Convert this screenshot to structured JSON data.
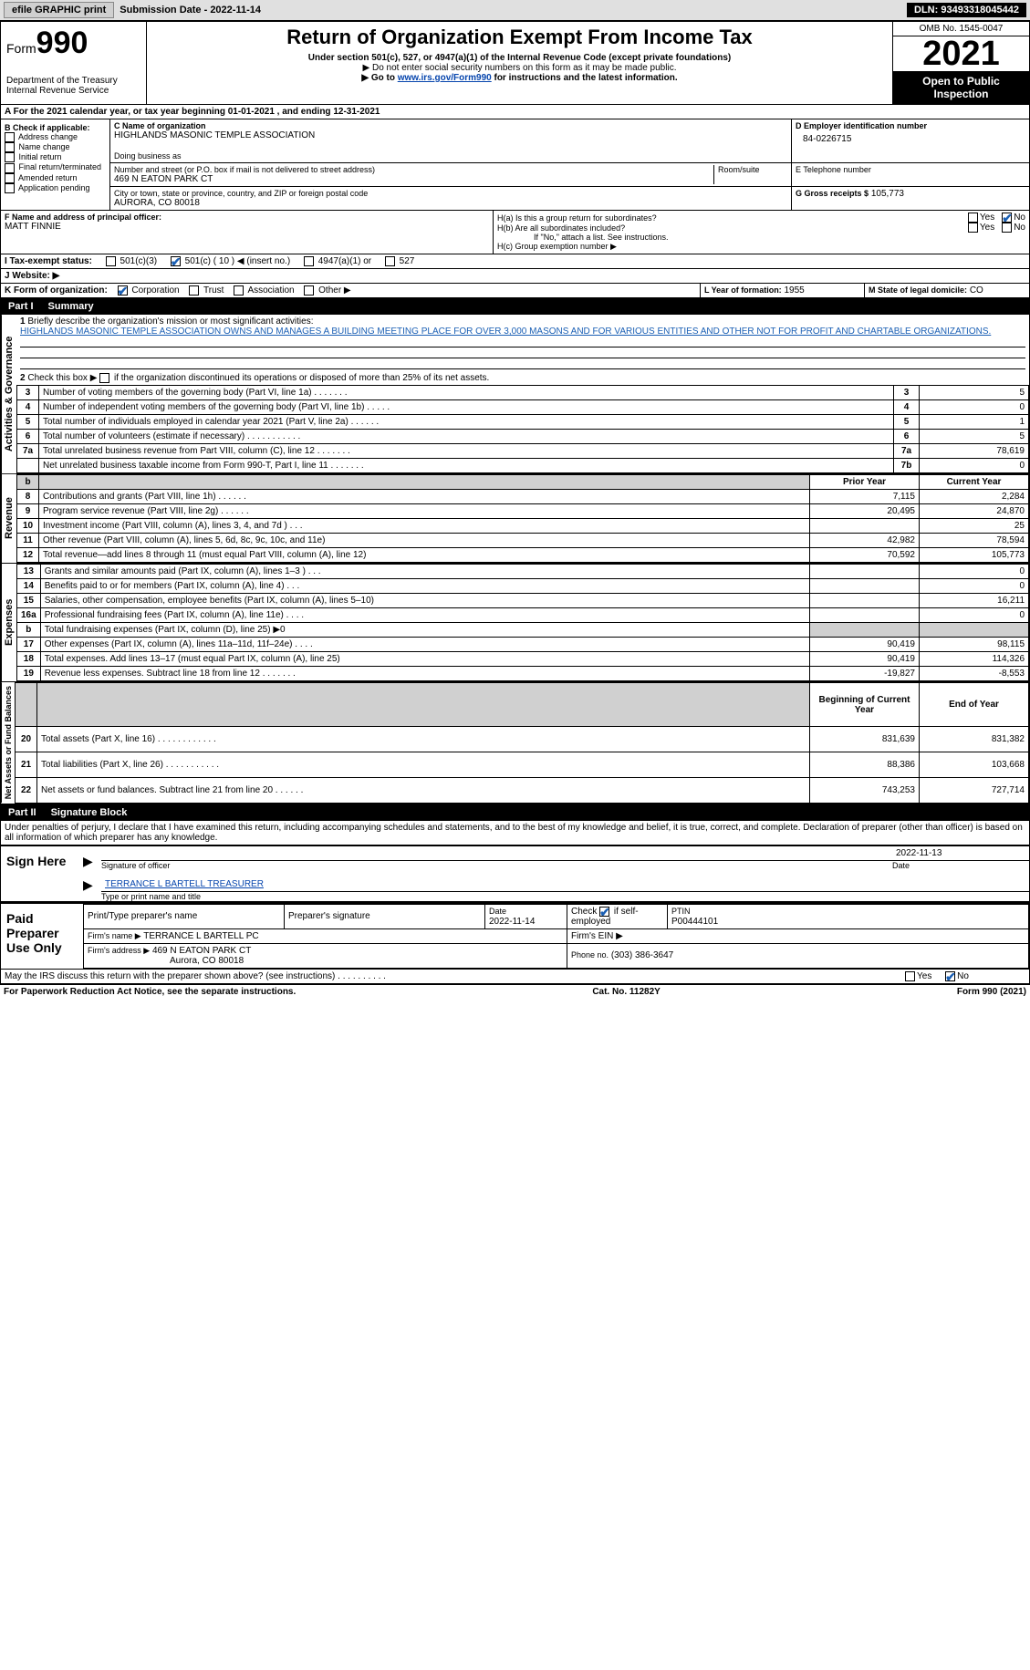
{
  "topbar": {
    "efile_btn": "efile GRAPHIC print",
    "submission_label": "Submission Date - 2022-11-14",
    "dln": "DLN: 93493318045442"
  },
  "header": {
    "form_prefix": "Form",
    "form_number": "990",
    "dept": "Department of the Treasury",
    "irs": "Internal Revenue Service",
    "title": "Return of Organization Exempt From Income Tax",
    "subtitle": "Under section 501(c), 527, or 4947(a)(1) of the Internal Revenue Code (except private foundations)",
    "note1": "▶ Do not enter social security numbers on this form as it may be made public.",
    "note2_pre": "▶ Go to ",
    "note2_link": "www.irs.gov/Form990",
    "note2_post": " for instructions and the latest information.",
    "omb": "OMB No. 1545-0047",
    "tax_year": "2021",
    "open_public": "Open to Public Inspection"
  },
  "period": {
    "line": "A For the 2021 calendar year, or tax year beginning 01-01-2021    , and ending 12-31-2021"
  },
  "section_b": {
    "label": "B Check if applicable:",
    "opts": [
      "Address change",
      "Name change",
      "Initial return",
      "Final return/terminated",
      "Amended return",
      "Application pending"
    ]
  },
  "section_c": {
    "name_label": "C Name of organization",
    "org_name": "HIGHLANDS MASONIC TEMPLE ASSOCIATION",
    "dba_label": "Doing business as",
    "street_label": "Number and street (or P.O. box if mail is not delivered to street address)",
    "room_label": "Room/suite",
    "street": "469 N EATON PARK CT",
    "city_label": "City or town, state or province, country, and ZIP or foreign postal code",
    "city": "AURORA, CO  80018"
  },
  "section_d": {
    "label": "D Employer identification number",
    "value": "84-0226715"
  },
  "section_e": {
    "label": "E Telephone number",
    "value": ""
  },
  "section_g": {
    "label": "G Gross receipts $",
    "value": "105,773"
  },
  "section_f": {
    "label": "F  Name and address of principal officer:",
    "name": "MATT FINNIE"
  },
  "section_h": {
    "ha_label": "H(a)  Is this a group return for subordinates?",
    "hb_label": "H(b)  Are all subordinates included?",
    "hb_note": "If \"No,\" attach a list. See instructions.",
    "hc_label": "H(c)  Group exemption number ▶",
    "yes": "Yes",
    "no": "No"
  },
  "section_i": {
    "label": "I   Tax-exempt status:",
    "opt1": "501(c)(3)",
    "opt2": "501(c) ( 10 ) ◀ (insert no.)",
    "opt3": "4947(a)(1) or",
    "opt4": "527"
  },
  "section_j": {
    "label": "J   Website: ▶"
  },
  "section_k": {
    "label": "K Form of organization:",
    "corp": "Corporation",
    "trust": "Trust",
    "assoc": "Association",
    "other": "Other ▶"
  },
  "section_l": {
    "label": "L Year of formation:",
    "value": "1955"
  },
  "section_m": {
    "label": "M State of legal domicile:",
    "value": "CO"
  },
  "part1": {
    "num": "Part I",
    "title": "Summary",
    "q1_label": "Briefly describe the organization's mission or most significant activities:",
    "q1_text": "HIGHLANDS MASONIC TEMPLE ASSOCIATION OWNS AND MANAGES A BUILDING MEETING PLACE FOR OVER 3,000 MASONS AND FOR VARIOUS ENTITIES AND OTHER NOT FOR PROFIT AND CHARTABLE ORGANIZATIONS.",
    "q2": "Check this box ▶      if the organization discontinued its operations or disposed of more than 25% of its net assets.",
    "lines_ag": [
      {
        "n": "3",
        "d": "Number of voting members of the governing body (Part VI, line 1a)   .    .    .    .    .    .    .",
        "b": "3",
        "v": "5"
      },
      {
        "n": "4",
        "d": "Number of independent voting members of the governing body (Part VI, line 1b)   .    .    .    .    .",
        "b": "4",
        "v": "0"
      },
      {
        "n": "5",
        "d": "Total number of individuals employed in calendar year 2021 (Part V, line 2a)   .    .    .    .    .    .",
        "b": "5",
        "v": "1"
      },
      {
        "n": "6",
        "d": "Total number of volunteers (estimate if necessary)    .    .    .    .    .    .    .    .    .    .    .",
        "b": "6",
        "v": "5"
      },
      {
        "n": "7a",
        "d": "Total unrelated business revenue from Part VIII, column (C), line 12   .    .    .    .    .    .    .",
        "b": "7a",
        "v": "78,619"
      },
      {
        "n": "",
        "d": "Net unrelated business taxable income from Form 990-T, Part I, line 11   .    .    .    .    .    .    .",
        "b": "7b",
        "v": "0"
      }
    ],
    "col_prior": "Prior Year",
    "col_current": "Current Year",
    "revenue_label": "Revenue",
    "expenses_label": "Expenses",
    "netassets_label": "Net Assets or Fund Balances",
    "ag_label": "Activities & Governance",
    "revenue": [
      {
        "n": "8",
        "d": "Contributions and grants (Part VIII, line 1h)   .    .    .    .    .    .",
        "p": "7,115",
        "c": "2,284"
      },
      {
        "n": "9",
        "d": "Program service revenue (Part VIII, line 2g)   .    .    .    .    .    .",
        "p": "20,495",
        "c": "24,870"
      },
      {
        "n": "10",
        "d": "Investment income (Part VIII, column (A), lines 3, 4, and 7d )   .    .    .",
        "p": "",
        "c": "25"
      },
      {
        "n": "11",
        "d": "Other revenue (Part VIII, column (A), lines 5, 6d, 8c, 9c, 10c, and 11e)",
        "p": "42,982",
        "c": "78,594"
      },
      {
        "n": "12",
        "d": "Total revenue—add lines 8 through 11 (must equal Part VIII, column (A), line 12)",
        "p": "70,592",
        "c": "105,773"
      }
    ],
    "expenses": [
      {
        "n": "13",
        "d": "Grants and similar amounts paid (Part IX, column (A), lines 1–3 )   .    .    .",
        "p": "",
        "c": "0"
      },
      {
        "n": "14",
        "d": "Benefits paid to or for members (Part IX, column (A), line 4)   .    .    .",
        "p": "",
        "c": "0"
      },
      {
        "n": "15",
        "d": "Salaries, other compensation, employee benefits (Part IX, column (A), lines 5–10)",
        "p": "",
        "c": "16,211"
      },
      {
        "n": "16a",
        "d": "Professional fundraising fees (Part IX, column (A), line 11e)   .    .    .    .",
        "p": "",
        "c": "0"
      },
      {
        "n": "b",
        "d": "Total fundraising expenses (Part IX, column (D), line 25) ▶0",
        "p": "shade",
        "c": "shade"
      },
      {
        "n": "17",
        "d": "Other expenses (Part IX, column (A), lines 11a–11d, 11f–24e)   .    .    .    .",
        "p": "90,419",
        "c": "98,115"
      },
      {
        "n": "18",
        "d": "Total expenses. Add lines 13–17 (must equal Part IX, column (A), line 25)",
        "p": "90,419",
        "c": "114,326"
      },
      {
        "n": "19",
        "d": "Revenue less expenses. Subtract line 18 from line 12   .    .    .    .    .    .    .",
        "p": "-19,827",
        "c": "-8,553"
      }
    ],
    "col_begin": "Beginning of Current Year",
    "col_end": "End of Year",
    "netassets": [
      {
        "n": "20",
        "d": "Total assets (Part X, line 16)   .    .    .    .    .    .    .    .    .    .    .    .",
        "p": "831,639",
        "c": "831,382"
      },
      {
        "n": "21",
        "d": "Total liabilities (Part X, line 26)   .    .    .    .    .    .    .    .    .    .    .",
        "p": "88,386",
        "c": "103,668"
      },
      {
        "n": "22",
        "d": "Net assets or fund balances. Subtract line 21 from line 20   .    .    .    .    .    .",
        "p": "743,253",
        "c": "727,714"
      }
    ]
  },
  "part2": {
    "num": "Part II",
    "title": "Signature Block",
    "decl": "Under penalties of perjury, I declare that I have examined this return, including accompanying schedules and statements, and to the best of my knowledge and belief, it is true, correct, and complete. Declaration of preparer (other than officer) is based on all information of which preparer has any knowledge."
  },
  "sign_here": {
    "label": "Sign Here",
    "sig_officer": "Signature of officer",
    "date": "Date",
    "date_val": "2022-11-13",
    "name_title": "TERRANCE L BARTELL TREASURER",
    "name_label": "Type or print name and title"
  },
  "paid_prep": {
    "label": "Paid Preparer Use Only",
    "h1": "Print/Type preparer's name",
    "h2": "Preparer's signature",
    "h3": "Date",
    "h3v": "2022-11-14",
    "h4": "Check        if self-employed",
    "h5": "PTIN",
    "h5v": "P00444101",
    "firm_name_l": "Firm's name     ▶",
    "firm_name": "TERRANCE L BARTELL PC",
    "firm_ein_l": "Firm's EIN ▶",
    "firm_addr_l": "Firm's address ▶",
    "firm_addr1": "469 N EATON PARK CT",
    "firm_addr2": "Aurora, CO  80018",
    "phone_l": "Phone no.",
    "phone": "(303) 386-3647"
  },
  "footer": {
    "discuss": "May the IRS discuss this return with the preparer shown above? (see instructions)    .    .    .    .    .    .    .    .    .    .",
    "yes": "Yes",
    "no": "No",
    "pra": "For Paperwork Reduction Act Notice, see the separate instructions.",
    "cat": "Cat. No. 11282Y",
    "form": "Form 990 (2021)"
  }
}
